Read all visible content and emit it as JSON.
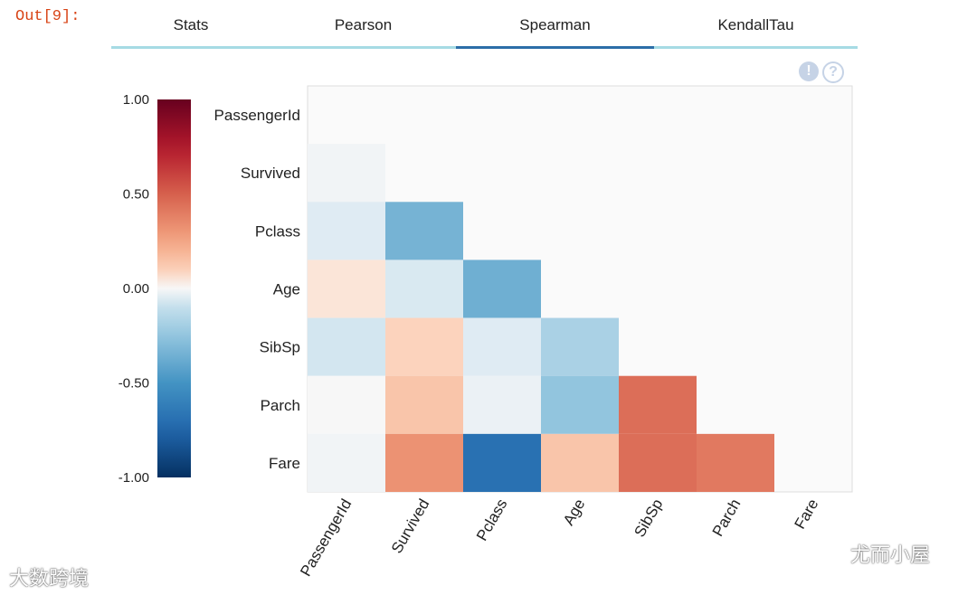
{
  "prompt": "Out[9]:",
  "tabs": [
    {
      "label": "Stats"
    },
    {
      "label": "Pearson"
    },
    {
      "label": "Spearman",
      "active": true
    },
    {
      "label": "KendallTau"
    }
  ],
  "icons": [
    "warning-icon",
    "help-icon"
  ],
  "watermarks": {
    "left": "大数跨境",
    "right": "尤而小屋"
  },
  "chart_data": {
    "type": "heatmap",
    "colormap": "RdBu_r",
    "clim": [
      -1,
      1
    ],
    "colorbar_ticks": [
      "1.00",
      "0.50",
      "0.00",
      "-0.50",
      "-1.00"
    ],
    "colorbar_tick_values": [
      1,
      0.5,
      0,
      -0.5,
      -1
    ],
    "variables": [
      "PassengerId",
      "Survived",
      "Pclass",
      "Age",
      "SibSp",
      "Parch",
      "Fare"
    ],
    "values": [
      [
        null,
        null,
        null,
        null,
        null,
        null,
        null
      ],
      [
        -0.01,
        null,
        null,
        null,
        null,
        null,
        null
      ],
      [
        -0.04,
        -0.34,
        null,
        null,
        null,
        null,
        null
      ],
      [
        0.04,
        -0.05,
        -0.36,
        null,
        null,
        null,
        null
      ],
      [
        -0.06,
        0.09,
        -0.04,
        -0.18,
        null,
        null,
        null
      ],
      [
        0.0,
        0.14,
        -0.02,
        -0.25,
        0.45,
        null,
        null
      ],
      [
        -0.01,
        0.32,
        -0.69,
        0.14,
        0.45,
        0.41,
        null
      ]
    ],
    "mask": "upper-triangle-and-diagonal",
    "background": "#fafafa"
  }
}
